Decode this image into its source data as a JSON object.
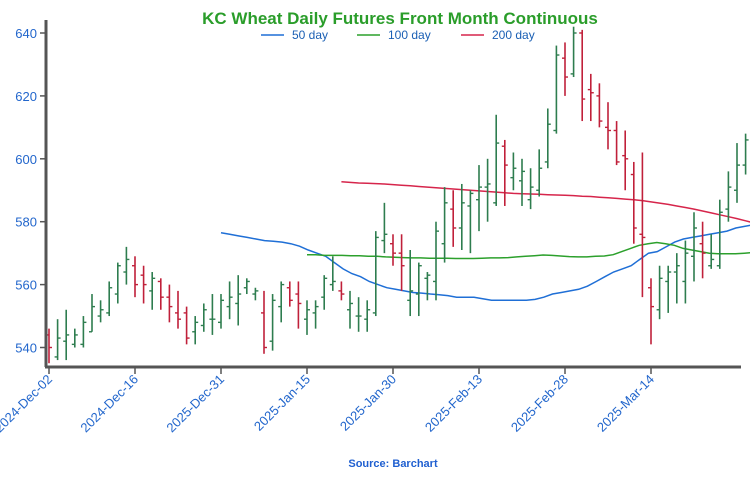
{
  "chart_data": {
    "type": "ohlc",
    "title": "KC Wheat Daily Futures Front Month Continuous",
    "source": "Source: Barchart",
    "ylim": [
      534,
      644
    ],
    "yticks": [
      540,
      560,
      580,
      600,
      620,
      640
    ],
    "grid": false,
    "legend_position": "top-center",
    "colors": {
      "title": "#2a9d2a",
      "up": "#2e7d4f",
      "down": "#c0203a",
      "ma50": "#1f6fd6",
      "ma100": "#2ca02c",
      "ma200": "#d6254b",
      "tick_text": "#2266cc"
    },
    "x_labels": [
      {
        "label": "2024-Dec-02",
        "index": 0
      },
      {
        "label": "2024-Dec-16",
        "index": 10
      },
      {
        "label": "2025-Dec-31",
        "index": 20
      },
      {
        "label": "2025-Jan-15",
        "index": 30
      },
      {
        "label": "2025-Jan-30",
        "index": 40
      },
      {
        "label": "2025-Feb-13",
        "index": 50
      },
      {
        "label": "2025-Feb-28",
        "index": 60
      },
      {
        "label": "2025-Mar-14",
        "index": 70
      }
    ],
    "ohlc": [
      [
        544,
        546,
        535,
        540
      ],
      [
        537,
        549,
        536,
        543
      ],
      [
        542,
        552,
        536,
        544
      ],
      [
        541,
        546,
        540,
        544
      ],
      [
        541,
        550,
        540,
        548
      ],
      [
        545,
        557,
        545,
        553
      ],
      [
        550,
        555,
        548,
        552
      ],
      [
        551,
        561,
        550,
        559
      ],
      [
        557,
        567,
        554,
        566
      ],
      [
        564,
        572,
        560,
        568
      ],
      [
        566,
        569,
        556,
        560
      ],
      [
        563,
        566,
        554,
        560
      ],
      [
        558,
        564,
        552,
        562
      ],
      [
        561,
        562,
        552,
        556
      ],
      [
        556,
        560,
        548,
        553
      ],
      [
        551,
        558,
        546,
        549
      ],
      [
        551,
        553,
        541,
        543
      ],
      [
        545,
        550,
        541,
        548
      ],
      [
        547,
        554,
        545,
        552
      ],
      [
        549,
        557,
        544,
        549
      ],
      [
        548,
        557,
        546,
        555
      ],
      [
        553,
        561,
        549,
        556
      ],
      [
        554,
        563,
        547,
        557
      ],
      [
        559,
        562,
        557,
        561
      ],
      [
        557,
        559,
        555,
        558
      ],
      [
        551,
        558,
        538,
        540
      ],
      [
        542,
        557,
        539,
        555
      ],
      [
        553,
        561,
        548,
        560
      ],
      [
        559,
        561,
        553,
        555
      ],
      [
        557,
        561,
        546,
        554
      ],
      [
        549,
        555,
        544,
        552
      ],
      [
        551,
        555,
        546,
        553
      ],
      [
        556,
        563,
        552,
        562
      ],
      [
        560,
        569,
        558,
        561
      ],
      [
        558,
        561,
        555,
        557
      ],
      [
        552,
        558,
        546,
        554
      ],
      [
        550,
        556,
        545,
        550
      ],
      [
        549,
        555,
        545,
        552
      ],
      [
        551,
        577,
        550,
        575
      ],
      [
        574,
        586,
        570,
        576
      ],
      [
        573,
        576,
        566,
        570
      ],
      [
        570,
        576,
        558,
        566
      ],
      [
        555,
        571,
        550,
        558
      ],
      [
        557,
        567,
        550,
        566
      ],
      [
        562,
        564,
        555,
        563
      ],
      [
        561,
        580,
        555,
        577
      ],
      [
        573,
        591,
        567,
        586
      ],
      [
        584,
        590,
        572,
        578
      ],
      [
        578,
        592,
        571,
        586
      ],
      [
        585,
        590,
        570,
        589
      ],
      [
        587,
        598,
        577,
        591
      ],
      [
        591,
        600,
        580,
        592
      ],
      [
        586,
        614,
        585,
        605
      ],
      [
        604,
        606,
        585,
        598
      ],
      [
        594,
        602,
        590,
        597
      ],
      [
        593,
        600,
        585,
        596
      ],
      [
        587,
        597,
        584,
        591
      ],
      [
        590,
        603,
        588,
        597
      ],
      [
        599,
        616,
        597,
        611
      ],
      [
        609,
        636,
        608,
        633
      ],
      [
        632,
        637,
        620,
        626
      ],
      [
        627,
        642,
        626,
        640
      ],
      [
        640,
        641,
        612,
        619
      ],
      [
        622,
        627,
        612,
        621
      ],
      [
        620,
        624,
        610,
        612
      ],
      [
        610,
        618,
        603,
        609
      ],
      [
        609,
        612,
        598,
        599
      ],
      [
        601,
        609,
        590,
        600
      ],
      [
        595,
        599,
        573,
        578
      ],
      [
        576,
        602,
        556,
        575
      ],
      [
        559,
        562,
        541,
        553
      ],
      [
        552,
        566,
        549,
        562
      ],
      [
        561,
        566,
        551,
        564
      ],
      [
        564,
        570,
        554,
        566
      ],
      [
        561,
        574,
        554,
        570
      ],
      [
        569,
        583,
        561,
        578
      ],
      [
        573,
        580,
        562,
        570
      ],
      [
        566,
        576,
        565,
        568
      ],
      [
        566,
        587,
        565,
        583
      ],
      [
        584,
        596,
        580,
        591
      ],
      [
        590,
        605,
        586,
        598
      ],
      [
        598,
        608,
        595,
        606
      ],
      [
        603,
        617,
        597,
        605
      ],
      [
        605,
        607,
        590,
        593
      ],
      [
        596,
        602,
        585,
        591
      ],
      [
        591,
        596,
        582,
        590
      ],
      [
        584,
        596,
        581,
        589
      ],
      [
        588,
        595,
        575,
        579
      ],
      [
        575,
        578,
        567,
        570
      ],
      [
        572,
        576,
        562,
        568
      ],
      [
        566,
        573,
        561,
        566
      ]
    ],
    "series": [
      {
        "name": "50 day",
        "values": [
          576.5,
          576.0,
          575.5,
          575.0,
          574.5,
          574.0,
          573.8,
          573.5,
          573.0,
          572.2,
          571.0,
          570.0,
          569.0,
          567.0,
          565.0,
          563.5,
          562.5,
          561.0,
          560.0,
          559.0,
          558.5,
          558.0,
          557.5,
          557.3,
          557.0,
          556.8,
          556.5,
          556.0,
          556.0,
          556.0,
          555.5,
          555.0,
          555.0,
          555.0,
          555.0,
          555.0,
          555.3,
          556.0,
          557.0,
          557.5,
          558.0,
          558.5,
          559.5,
          561.0,
          562.5,
          564.0,
          565.0,
          566.0,
          568.0,
          570.0,
          570.5,
          572.0,
          573.5,
          574.5,
          575.0,
          575.5,
          576.0,
          576.5,
          577.0,
          578.0,
          578.5,
          579.0,
          580.0,
          581.5,
          582.5,
          583.5,
          584.0,
          584.5,
          584.8,
          585.0
        ]
      },
      {
        "name": "100 day",
        "values": [
          569.5,
          569.5,
          569.3,
          569.3,
          569.3,
          569.2,
          569.2,
          569.0,
          569.0,
          568.8,
          568.7,
          568.6,
          568.5,
          568.5,
          568.4,
          568.4,
          568.4,
          568.3,
          568.3,
          568.3,
          568.4,
          568.5,
          568.5,
          568.6,
          568.8,
          569.0,
          569.2,
          569.4,
          569.3,
          569.1,
          568.9,
          568.8,
          568.8,
          569.0,
          569.1,
          569.5,
          570.5,
          571.5,
          572.5,
          573.0,
          573.4,
          573.0,
          572.5,
          571.5,
          571.0,
          570.5,
          570.0,
          569.8,
          569.8,
          569.8,
          570.0,
          570.2,
          570.5,
          570.7,
          570.6,
          570.5,
          570.4,
          570.3,
          570.2,
          570.0
        ]
      },
      {
        "name": "200 day",
        "values": [
          592.7,
          592.5,
          592.3,
          592.2,
          592.1,
          592.0,
          591.8,
          591.6,
          591.4,
          591.2,
          591.0,
          590.8,
          590.6,
          590.4,
          590.2,
          590.0,
          589.8,
          589.6,
          589.4,
          589.2,
          589.0,
          588.9,
          588.8,
          588.7,
          588.6,
          588.5,
          588.4,
          588.3,
          588.1,
          588.0,
          587.8,
          587.6,
          587.4,
          587.2,
          587.0,
          586.7,
          586.3,
          585.9,
          585.5,
          585.0,
          584.5,
          584.0,
          583.4,
          582.8,
          582.2,
          581.6,
          581.0,
          580.3,
          579.6,
          578.9,
          578.2,
          577.5,
          576.8,
          576.1,
          575.4,
          574.8,
          574.2
        ]
      }
    ]
  }
}
